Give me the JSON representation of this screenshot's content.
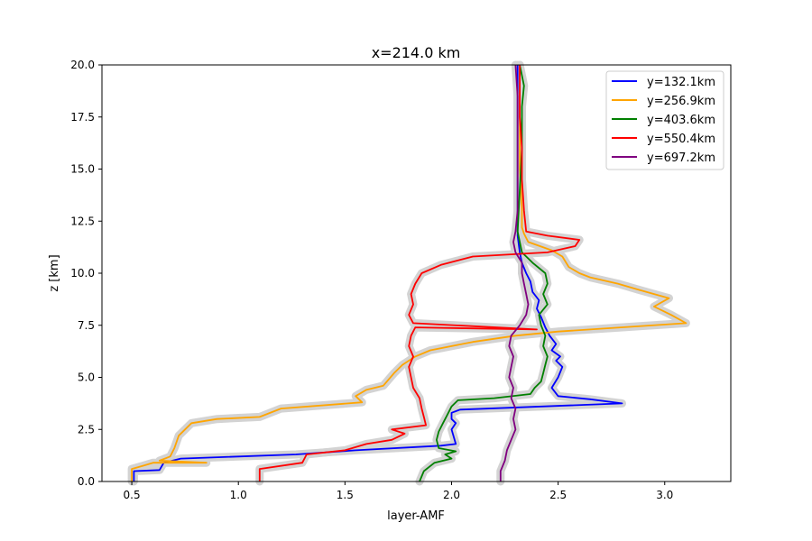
{
  "chart_data": {
    "type": "line",
    "title": "x=214.0 km",
    "xlabel": "layer-AMF",
    "ylabel": "z [km]",
    "xlim": [
      0.36,
      3.31
    ],
    "ylim": [
      0,
      20
    ],
    "xticks": [
      "0.5",
      "1.0",
      "1.5",
      "2.0",
      "2.5",
      "3.0"
    ],
    "xtick_values": [
      0.5,
      1.0,
      1.5,
      2.0,
      2.5,
      3.0
    ],
    "yticks": [
      "0.0",
      "2.5",
      "5.0",
      "7.5",
      "10.0",
      "12.5",
      "15.0",
      "17.5",
      "20.0"
    ],
    "ytick_values": [
      0,
      2.5,
      5,
      7.5,
      10,
      12.5,
      15,
      17.5,
      20
    ],
    "grid": false,
    "legend_position": "top-right",
    "uncertainty_band_color": "#d3d3d3",
    "series": [
      {
        "name": "y=132.1km",
        "color": "#0000ff",
        "points": [
          [
            0.51,
            0.0
          ],
          [
            0.51,
            0.5
          ],
          [
            0.63,
            0.55
          ],
          [
            0.65,
            0.9
          ],
          [
            0.73,
            1.1
          ],
          [
            1.27,
            1.3
          ],
          [
            1.55,
            1.5
          ],
          [
            1.95,
            1.72
          ],
          [
            2.02,
            1.8
          ],
          [
            2.0,
            2.5
          ],
          [
            2.02,
            2.8
          ],
          [
            2.0,
            3.0
          ],
          [
            2.0,
            3.3
          ],
          [
            2.04,
            3.45
          ],
          [
            2.8,
            3.75
          ],
          [
            2.65,
            3.95
          ],
          [
            2.5,
            4.1
          ],
          [
            2.47,
            4.5
          ],
          [
            2.5,
            5.0
          ],
          [
            2.52,
            5.5
          ],
          [
            2.49,
            5.8
          ],
          [
            2.51,
            6.0
          ],
          [
            2.47,
            6.3
          ],
          [
            2.49,
            6.6
          ],
          [
            2.46,
            7.0
          ],
          [
            2.44,
            7.4
          ],
          [
            2.42,
            7.9
          ],
          [
            2.4,
            8.3
          ],
          [
            2.41,
            8.7
          ],
          [
            2.38,
            9.1
          ],
          [
            2.37,
            9.6
          ],
          [
            2.35,
            10.0
          ],
          [
            2.33,
            10.5
          ],
          [
            2.32,
            11.0
          ],
          [
            2.31,
            11.8
          ],
          [
            2.31,
            12.5
          ],
          [
            2.31,
            14.0
          ],
          [
            2.31,
            16.0
          ],
          [
            2.31,
            18.0
          ],
          [
            2.31,
            20.0
          ]
        ]
      },
      {
        "name": "y=256.9km",
        "color": "#ffa500",
        "points": [
          [
            0.5,
            0.0
          ],
          [
            0.5,
            0.6
          ],
          [
            0.55,
            0.75
          ],
          [
            0.6,
            0.9
          ],
          [
            0.85,
            0.9
          ],
          [
            0.63,
            1.0
          ],
          [
            0.68,
            1.2
          ],
          [
            0.7,
            1.6
          ],
          [
            0.72,
            2.2
          ],
          [
            0.78,
            2.8
          ],
          [
            0.9,
            3.0
          ],
          [
            1.1,
            3.1
          ],
          [
            1.2,
            3.5
          ],
          [
            1.58,
            3.8
          ],
          [
            1.55,
            4.1
          ],
          [
            1.6,
            4.4
          ],
          [
            1.68,
            4.6
          ],
          [
            1.73,
            5.2
          ],
          [
            1.77,
            5.6
          ],
          [
            1.83,
            6.0
          ],
          [
            1.9,
            6.3
          ],
          [
            2.1,
            6.7
          ],
          [
            2.3,
            7.0
          ],
          [
            2.5,
            7.2
          ],
          [
            3.1,
            7.6
          ],
          [
            3.03,
            8.0
          ],
          [
            2.95,
            8.4
          ],
          [
            3.02,
            8.8
          ],
          [
            2.88,
            9.2
          ],
          [
            2.78,
            9.5
          ],
          [
            2.65,
            9.8
          ],
          [
            2.6,
            10.0
          ],
          [
            2.55,
            10.3
          ],
          [
            2.52,
            10.8
          ],
          [
            2.47,
            11.1
          ],
          [
            2.36,
            11.5
          ],
          [
            2.34,
            11.9
          ],
          [
            2.33,
            12.2
          ],
          [
            2.33,
            13.0
          ],
          [
            2.32,
            15.0
          ],
          [
            2.32,
            17.5
          ],
          [
            2.32,
            20.0
          ]
        ]
      },
      {
        "name": "y=403.6km",
        "color": "#008000",
        "points": [
          [
            1.85,
            0.0
          ],
          [
            1.87,
            0.5
          ],
          [
            1.92,
            0.9
          ],
          [
            2.0,
            1.1
          ],
          [
            1.97,
            1.3
          ],
          [
            2.02,
            1.45
          ],
          [
            1.94,
            1.6
          ],
          [
            1.93,
            2.0
          ],
          [
            1.94,
            2.4
          ],
          [
            1.96,
            2.8
          ],
          [
            1.98,
            3.2
          ],
          [
            2.0,
            3.6
          ],
          [
            2.03,
            3.9
          ],
          [
            2.2,
            4.0
          ],
          [
            2.37,
            4.2
          ],
          [
            2.39,
            4.5
          ],
          [
            2.42,
            4.8
          ],
          [
            2.43,
            5.2
          ],
          [
            2.44,
            5.6
          ],
          [
            2.45,
            6.0
          ],
          [
            2.43,
            6.5
          ],
          [
            2.44,
            7.0
          ],
          [
            2.42,
            7.5
          ],
          [
            2.41,
            8.0
          ],
          [
            2.45,
            8.5
          ],
          [
            2.43,
            9.0
          ],
          [
            2.45,
            9.5
          ],
          [
            2.44,
            10.0
          ],
          [
            2.38,
            10.5
          ],
          [
            2.33,
            11.0
          ],
          [
            2.31,
            12.0
          ],
          [
            2.32,
            14.0
          ],
          [
            2.33,
            16.0
          ],
          [
            2.33,
            18.0
          ],
          [
            2.34,
            19.0
          ],
          [
            2.32,
            20.0
          ]
        ]
      },
      {
        "name": "y=550.4km",
        "color": "#ff0000",
        "points": [
          [
            1.1,
            0.0
          ],
          [
            1.1,
            0.6
          ],
          [
            1.3,
            0.9
          ],
          [
            1.32,
            1.3
          ],
          [
            1.5,
            1.5
          ],
          [
            1.6,
            1.8
          ],
          [
            1.72,
            2.0
          ],
          [
            1.78,
            2.3
          ],
          [
            1.72,
            2.5
          ],
          [
            1.88,
            2.7
          ],
          [
            1.87,
            3.1
          ],
          [
            1.86,
            3.5
          ],
          [
            1.85,
            4.0
          ],
          [
            1.82,
            4.5
          ],
          [
            1.81,
            5.0
          ],
          [
            1.8,
            5.5
          ],
          [
            1.82,
            6.0
          ],
          [
            1.8,
            6.5
          ],
          [
            1.81,
            7.0
          ],
          [
            1.83,
            7.4
          ],
          [
            2.4,
            7.3
          ],
          [
            1.82,
            7.6
          ],
          [
            1.8,
            8.0
          ],
          [
            1.82,
            8.5
          ],
          [
            1.81,
            9.0
          ],
          [
            1.83,
            9.5
          ],
          [
            1.86,
            10.0
          ],
          [
            1.95,
            10.4
          ],
          [
            2.1,
            10.8
          ],
          [
            2.45,
            11.0
          ],
          [
            2.58,
            11.3
          ],
          [
            2.6,
            11.6
          ],
          [
            2.45,
            11.8
          ],
          [
            2.35,
            12.0
          ],
          [
            2.34,
            13.0
          ],
          [
            2.33,
            14.5
          ],
          [
            2.33,
            16.0
          ],
          [
            2.32,
            17.5
          ],
          [
            2.32,
            19.0
          ],
          [
            2.32,
            20.0
          ]
        ]
      },
      {
        "name": "y=697.2km",
        "color": "#800080",
        "points": [
          [
            2.23,
            0.0
          ],
          [
            2.23,
            0.5
          ],
          [
            2.25,
            1.0
          ],
          [
            2.26,
            1.5
          ],
          [
            2.28,
            2.0
          ],
          [
            2.3,
            2.5
          ],
          [
            2.29,
            3.0
          ],
          [
            2.3,
            3.5
          ],
          [
            2.28,
            4.0
          ],
          [
            2.29,
            4.5
          ],
          [
            2.27,
            5.0
          ],
          [
            2.28,
            5.5
          ],
          [
            2.29,
            6.0
          ],
          [
            2.27,
            6.5
          ],
          [
            2.28,
            7.0
          ],
          [
            2.32,
            7.5
          ],
          [
            2.35,
            8.0
          ],
          [
            2.36,
            8.5
          ],
          [
            2.35,
            9.0
          ],
          [
            2.34,
            9.5
          ],
          [
            2.33,
            10.0
          ],
          [
            2.33,
            10.5
          ],
          [
            2.3,
            11.0
          ],
          [
            2.29,
            11.5
          ],
          [
            2.3,
            12.0
          ],
          [
            2.31,
            13.0
          ],
          [
            2.31,
            14.5
          ],
          [
            2.31,
            16.0
          ],
          [
            2.31,
            17.5
          ],
          [
            2.31,
            18.5
          ],
          [
            2.3,
            20.0
          ]
        ]
      }
    ]
  }
}
